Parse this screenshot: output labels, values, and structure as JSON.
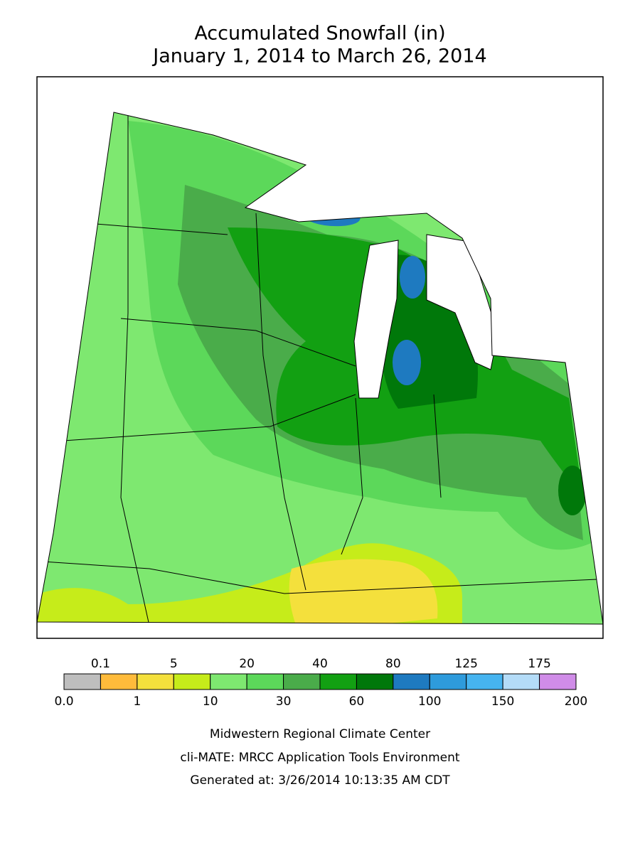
{
  "title": [
    "Accumulated Snowfall (in)",
    "January 1, 2014 to March 26, 2014"
  ],
  "legend": {
    "colors": [
      "#bebebe",
      "#ffbb3b",
      "#f4e03c",
      "#c6ec1a",
      "#7ee870",
      "#5cd85a",
      "#4aac4a",
      "#12a012",
      "#00780a",
      "#1e7ac0",
      "#2e9bdc",
      "#46b4f0",
      "#b4dcf8",
      "#d08ce8"
    ],
    "boundaries": [
      {
        "value": 0,
        "label": "0.0"
      },
      0.1,
      1,
      5,
      10,
      20,
      30,
      40,
      60,
      80,
      100,
      125,
      150,
      175,
      200
    ]
  },
  "footer": [
    "Midwestern Regional Climate Center",
    "cli-MATE: MRCC Application Tools Environment",
    "Generated at: 3/26/2014 10:13:35 AM CDT"
  ]
}
